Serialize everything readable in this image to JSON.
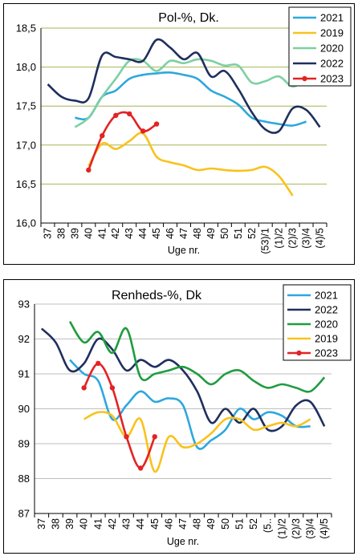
{
  "chart_data": [
    {
      "type": "line",
      "title": "Pol-%, Dk.",
      "xlabel": "Uge nr.",
      "ylabel": "",
      "ylim": [
        16.0,
        18.5
      ],
      "yticks": [
        "16,0",
        "16,5",
        "17,0",
        "17,5",
        "18,0",
        "18,5"
      ],
      "grid": "horizontal",
      "legend_position": "top-right",
      "categories": [
        "37",
        "38",
        "39",
        "40",
        "41",
        "42",
        "43",
        "44",
        "45",
        "46",
        "47",
        "48",
        "49",
        "50",
        "51",
        "52",
        "(53)/1",
        "(1)/2",
        "(2)/3",
        "(3)/4",
        "(4)/5"
      ],
      "series": [
        {
          "name": "2021",
          "color": "#2ea8dc",
          "values": [
            null,
            null,
            17.35,
            17.35,
            17.62,
            17.7,
            17.85,
            17.9,
            17.92,
            17.93,
            17.9,
            17.85,
            17.7,
            17.62,
            17.52,
            17.35,
            17.3,
            17.27,
            17.25,
            17.3,
            null
          ]
        },
        {
          "name": "2019",
          "color": "#f9c21d",
          "values": [
            null,
            null,
            null,
            16.73,
            17.02,
            16.95,
            17.05,
            17.15,
            16.85,
            16.78,
            16.74,
            16.68,
            16.7,
            16.68,
            16.67,
            16.68,
            16.72,
            16.6,
            16.35,
            null,
            null
          ]
        },
        {
          "name": "2020",
          "color": "#7dd0a3",
          "values": [
            null,
            null,
            17.23,
            17.35,
            17.62,
            17.85,
            18.08,
            18.08,
            17.95,
            18.08,
            18.05,
            18.1,
            18.08,
            18.02,
            18.02,
            17.8,
            17.82,
            17.88,
            17.75,
            17.85,
            null
          ]
        },
        {
          "name": "2022",
          "color": "#1f2f5e",
          "values": [
            17.78,
            17.62,
            17.57,
            17.6,
            18.15,
            18.13,
            18.1,
            18.08,
            18.35,
            18.25,
            18.1,
            18.18,
            17.88,
            17.95,
            17.72,
            17.42,
            17.2,
            17.18,
            17.47,
            17.45,
            17.23
          ]
        },
        {
          "name": "2023",
          "color": "#e32324",
          "markers": true,
          "values": [
            null,
            null,
            null,
            16.68,
            17.12,
            17.38,
            17.4,
            17.18,
            17.27,
            null,
            null,
            null,
            null,
            null,
            null,
            null,
            null,
            null,
            null,
            null,
            null
          ]
        }
      ]
    },
    {
      "type": "line",
      "title": "Renheds-%, Dk",
      "xlabel": "Uge nr.",
      "ylabel": "",
      "ylim": [
        87,
        93
      ],
      "yticks": [
        "87",
        "88",
        "89",
        "90",
        "91",
        "92",
        "93"
      ],
      "grid": "horizontal",
      "legend_position": "top-right",
      "categories": [
        "37",
        "38",
        "39",
        "40",
        "41",
        "42",
        "43",
        "44",
        "45",
        "46",
        "47",
        "48",
        "49",
        "50",
        "51",
        "52",
        "(5..",
        "(1)/2",
        "(2)/3",
        "(3)/4",
        "(4)/5"
      ],
      "series": [
        {
          "name": "2021",
          "color": "#2ea8dc",
          "values": [
            null,
            null,
            91.4,
            91.0,
            90.8,
            89.7,
            90.1,
            90.5,
            90.2,
            90.3,
            90.1,
            88.9,
            89.1,
            89.4,
            90.0,
            89.7,
            89.9,
            89.8,
            89.5,
            89.5,
            null
          ]
        },
        {
          "name": "2022",
          "color": "#1f2f5e",
          "values": [
            92.3,
            91.9,
            91.1,
            91.3,
            92.0,
            91.7,
            91.1,
            91.4,
            91.2,
            91.4,
            91.1,
            90.5,
            89.6,
            90.0,
            89.6,
            90.0,
            89.4,
            89.5,
            90.1,
            90.2,
            89.5
          ]
        },
        {
          "name": "2020",
          "color": "#1f9c3f",
          "values": [
            null,
            null,
            92.5,
            91.9,
            92.2,
            91.6,
            92.3,
            90.9,
            91.0,
            91.1,
            91.2,
            91.0,
            90.7,
            91.0,
            91.1,
            90.8,
            90.6,
            90.7,
            90.6,
            90.5,
            90.9
          ]
        },
        {
          "name": "2019",
          "color": "#f9c21d",
          "values": [
            null,
            null,
            null,
            89.7,
            89.9,
            89.8,
            89.2,
            89.7,
            88.2,
            89.2,
            88.9,
            89.0,
            89.3,
            89.7,
            89.7,
            89.4,
            89.5,
            89.6,
            89.5,
            89.7,
            null
          ]
        },
        {
          "name": "2023",
          "color": "#e32324",
          "markers": true,
          "values": [
            null,
            null,
            null,
            90.6,
            91.3,
            90.6,
            89.2,
            88.3,
            89.2,
            null,
            null,
            null,
            null,
            null,
            null,
            null,
            null,
            null,
            null,
            null,
            null
          ]
        }
      ]
    }
  ]
}
